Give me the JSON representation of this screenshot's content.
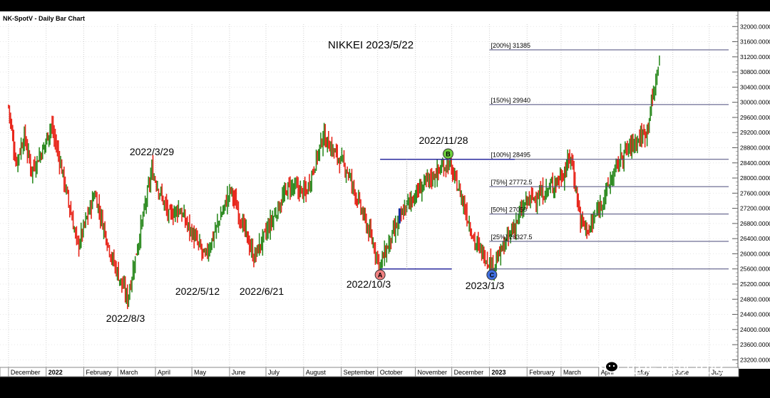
{
  "header": {
    "title": "NK-SpotV - Daily Bar Chart"
  },
  "chart_data": {
    "type": "bar",
    "title": "NIKKEI 2023/5/22",
    "ylim": [
      23000,
      32400
    ],
    "yticks": [
      "23200.0000",
      "23600.0000",
      "24000.0000",
      "24400.0000",
      "24800.0000",
      "25200.0000",
      "25600.0000",
      "26000.0000",
      "26400.0000",
      "26800.0000",
      "27200.0000",
      "27600.0000",
      "28000.0000",
      "28400.0000",
      "28800.0000",
      "29200.0000",
      "29600.0000",
      "30000.0000",
      "30400.0000",
      "30800.0000",
      "31200.0000",
      "31600.0000",
      "32000.0000"
    ],
    "months": [
      "December",
      "2022",
      "February",
      "March",
      "April",
      "May",
      "June",
      "July",
      "August",
      "September",
      "October",
      "November",
      "December",
      "2023",
      "February",
      "March",
      "April",
      "May",
      "June",
      "July"
    ],
    "fib_levels": [
      {
        "label": "[200%] 31385",
        "value": 31385
      },
      {
        "label": "[150%] 29940",
        "value": 29940
      },
      {
        "label": "[100%] 28495",
        "value": 28495
      },
      {
        "label": "[75%] 27772.5",
        "value": 27772.5
      },
      {
        "label": "[50%] 27050",
        "value": 27050
      },
      {
        "label": "[25%] 26327.5",
        "value": 26327.5
      },
      {
        "label": "",
        "value": 25600
      }
    ],
    "date_labels": [
      "2022/3/29",
      "2022/8/3",
      "2022/5/12",
      "2022/6/21",
      "2022/10/3",
      "2022/11/28",
      "2023/1/3"
    ],
    "points": {
      "A": "A",
      "B": "B",
      "C": "C"
    },
    "path": [
      [
        "2021-12-01",
        29900
      ],
      [
        "2021-12-07",
        28400
      ],
      [
        "2021-12-14",
        29100
      ],
      [
        "2021-12-20",
        28200
      ],
      [
        "2021-12-30",
        28800
      ],
      [
        "2022-01-05",
        29400
      ],
      [
        "2022-01-12",
        28500
      ],
      [
        "2022-01-27",
        26200
      ],
      [
        "2022-02-10",
        27600
      ],
      [
        "2022-02-24",
        25900
      ],
      [
        "2022-03-09",
        24800
      ],
      [
        "2022-03-29",
        28200
      ],
      [
        "2022-04-12",
        27000
      ],
      [
        "2022-04-20",
        27200
      ],
      [
        "2022-05-12",
        25900
      ],
      [
        "2022-06-02",
        27700
      ],
      [
        "2022-06-21",
        25900
      ],
      [
        "2022-07-20",
        27800
      ],
      [
        "2022-08-03",
        27600
      ],
      [
        "2022-08-17",
        29100
      ],
      [
        "2022-09-06",
        28200
      ],
      [
        "2022-09-30",
        26000
      ],
      [
        "2022-10-03",
        25700
      ],
      [
        "2022-10-12",
        26400
      ],
      [
        "2022-10-25",
        27300
      ],
      [
        "2022-11-10",
        27900
      ],
      [
        "2022-11-28",
        28400
      ],
      [
        "2022-12-08",
        27600
      ],
      [
        "2022-12-20",
        26300
      ],
      [
        "2023-01-04",
        25650
      ],
      [
        "2023-01-13",
        26200
      ],
      [
        "2023-02-01",
        27400
      ],
      [
        "2023-02-15",
        27600
      ],
      [
        "2023-03-03",
        28100
      ],
      [
        "2023-03-09",
        28600
      ],
      [
        "2023-03-17",
        26900
      ],
      [
        "2023-03-24",
        26600
      ],
      [
        "2023-04-05",
        27500
      ],
      [
        "2023-04-20",
        28600
      ],
      [
        "2023-05-02",
        29000
      ],
      [
        "2023-05-10",
        29200
      ],
      [
        "2023-05-17",
        30400
      ],
      [
        "2023-05-22",
        31300
      ]
    ]
  },
  "watermark": {
    "text": "边走边读边吃"
  }
}
